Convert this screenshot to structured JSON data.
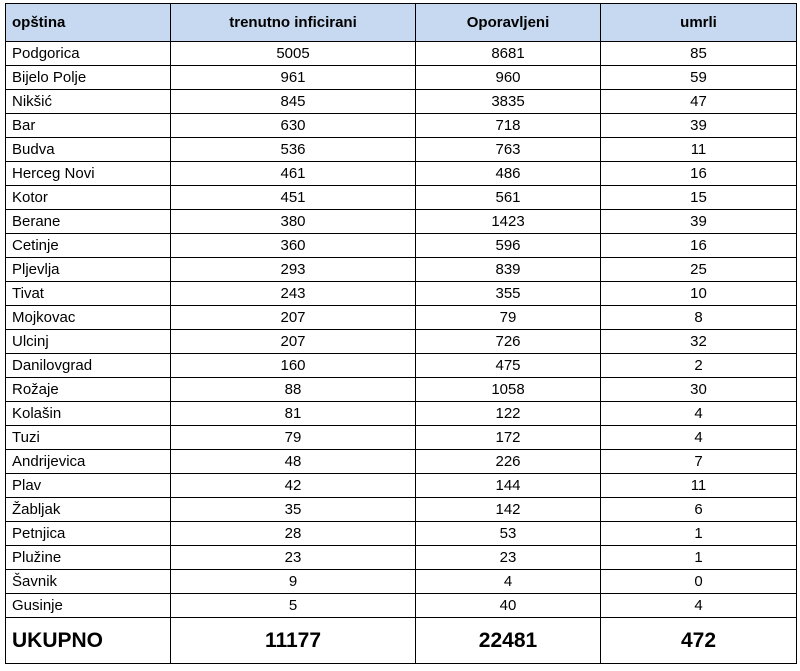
{
  "table": {
    "header": [
      "opština",
      "trenutno inficirani",
      "Oporavljeni",
      "umrli"
    ],
    "rows": [
      [
        "Podgorica",
        5005,
        8681,
        85
      ],
      [
        "Bijelo Polje",
        961,
        960,
        59
      ],
      [
        "Nikšić",
        845,
        3835,
        47
      ],
      [
        "Bar",
        630,
        718,
        39
      ],
      [
        "Budva",
        536,
        763,
        11
      ],
      [
        "Herceg Novi",
        461,
        486,
        16
      ],
      [
        "Kotor",
        451,
        561,
        15
      ],
      [
        "Berane",
        380,
        1423,
        39
      ],
      [
        "Cetinje",
        360,
        596,
        16
      ],
      [
        "Pljevlja",
        293,
        839,
        25
      ],
      [
        "Tivat",
        243,
        355,
        10
      ],
      [
        "Mojkovac",
        207,
        79,
        8
      ],
      [
        "Ulcinj",
        207,
        726,
        32
      ],
      [
        "Danilovgrad",
        160,
        475,
        2
      ],
      [
        "Rožaje",
        88,
        1058,
        30
      ],
      [
        "Kolašin",
        81,
        122,
        4
      ],
      [
        "Tuzi",
        79,
        172,
        4
      ],
      [
        "Andrijevica",
        48,
        226,
        7
      ],
      [
        "Plav",
        42,
        144,
        11
      ],
      [
        "Žabljak",
        35,
        142,
        6
      ],
      [
        "Petnjica",
        28,
        53,
        1
      ],
      [
        "Plužine",
        23,
        23,
        1
      ],
      [
        "Šavnik",
        9,
        4,
        0
      ],
      [
        "Gusinje",
        5,
        40,
        4
      ]
    ],
    "total": [
      "UKUPNO",
      11177,
      22481,
      472
    ]
  }
}
